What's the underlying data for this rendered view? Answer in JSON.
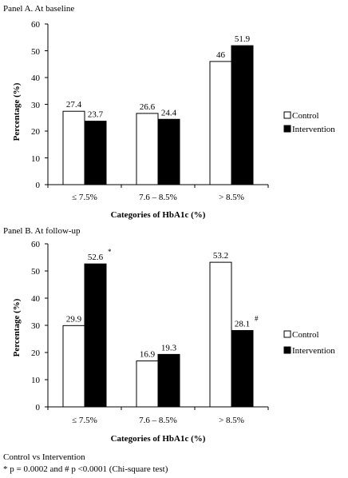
{
  "charts": [
    {
      "panel_title": "Panel A. At baseline",
      "type": "bar",
      "categories": [
        "≤ 7.5%",
        "7.6 – 8.5%",
        "> 8.5%"
      ],
      "series": [
        {
          "name": "Control",
          "values": [
            27.4,
            26.6,
            46
          ],
          "labels": [
            "27.4",
            "26.6",
            "46"
          ],
          "markers": [
            "",
            "",
            ""
          ],
          "color": "#ffffff"
        },
        {
          "name": "Intervention",
          "values": [
            23.7,
            24.4,
            51.9
          ],
          "labels": [
            "23.7",
            "24.4",
            "51.9"
          ],
          "markers": [
            "",
            "",
            ""
          ],
          "color": "#000000"
        }
      ],
      "xlabel": "Categories of HbA1c (%)",
      "ylabel": "Percentage (%)",
      "ylim": [
        0,
        60
      ],
      "yticks": [
        "0",
        "10",
        "20",
        "30",
        "40",
        "50",
        "60"
      ],
      "grid": false,
      "legend": "right"
    },
    {
      "panel_title": "Panel B. At follow-up",
      "type": "bar",
      "categories": [
        "≤ 7.5%",
        "7.6 – 8.5%",
        "> 8.5%"
      ],
      "series": [
        {
          "name": "Control",
          "values": [
            29.9,
            16.9,
            53.2
          ],
          "labels": [
            "29.9",
            "16.9",
            "53.2"
          ],
          "markers": [
            "",
            "",
            ""
          ],
          "color": "#ffffff"
        },
        {
          "name": "Intervention",
          "values": [
            52.6,
            19.3,
            28.1
          ],
          "labels": [
            "52.6",
            "19.3",
            "28.1"
          ],
          "markers": [
            "*",
            "",
            "#"
          ],
          "color": "#000000"
        }
      ],
      "xlabel": "Categories of HbA1c (%)",
      "ylabel": "Percentage (%)",
      "ylim": [
        0,
        60
      ],
      "yticks": [
        "0",
        "10",
        "20",
        "30",
        "40",
        "50",
        "60"
      ],
      "grid": false,
      "legend": "right"
    }
  ],
  "footnote": {
    "line1": "Control vs Intervention",
    "line2": "* p = 0.0002 and # p <0.0001 (Chi-square test)"
  }
}
